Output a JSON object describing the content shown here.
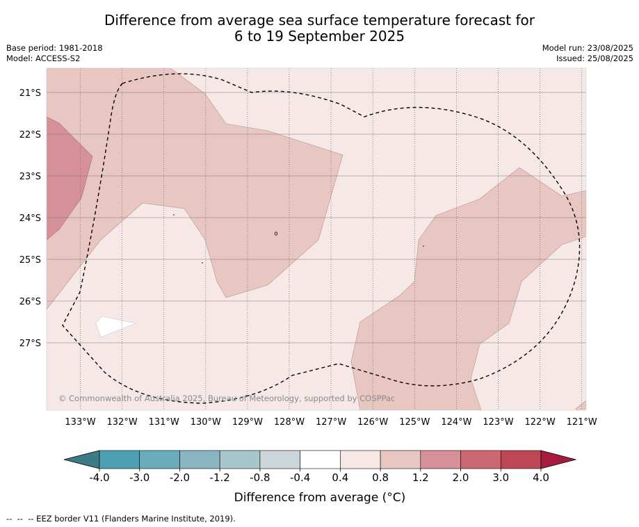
{
  "title": {
    "line1": "Difference from average sea surface temperature forecast for",
    "line2": "6 to 19 September 2025"
  },
  "meta_left": {
    "base_period": "Base period: 1981-2018",
    "model": "Model: ACCESS-S2"
  },
  "meta_right": {
    "model_run": "Model run: 23/08/2025",
    "issued": "Issued: 25/08/2025"
  },
  "map": {
    "lat_labels": [
      "21°S",
      "22°S",
      "23°S",
      "24°S",
      "25°S",
      "26°S",
      "27°S"
    ],
    "lon_labels": [
      "133°W",
      "132°W",
      "131°W",
      "130°W",
      "129°W",
      "128°W",
      "127°W",
      "126°W",
      "125°W",
      "124°W",
      "123°W",
      "122°W",
      "121°W"
    ],
    "watermark": "© Commonwealth of Australia 2025, Bureau of Meteorology, supported by COSPPac",
    "background_category": "0.4 to 0.8",
    "colors": {
      "c_04_08": "#f5e8e7",
      "c_08_12": "#e8c7c2",
      "c_12_20": "#d69098",
      "c_neutral": "#ffffff"
    }
  },
  "colorbar": {
    "label": "Difference from average (°C)",
    "ticks": [
      "-4.0",
      "-3.0",
      "-2.0",
      "-1.2",
      "-0.8",
      "-0.4",
      "0.4",
      "0.8",
      "1.2",
      "2.0",
      "3.0",
      "4.0"
    ],
    "colors": [
      "#3d7c87",
      "#4aa0b2",
      "#6aacba",
      "#8ab6c3",
      "#a8c7cc",
      "#cdd6d9",
      "#ffffff",
      "#f5e8e7",
      "#e8c7c2",
      "#d69098",
      "#cb6872",
      "#be4756",
      "#a71c3c"
    ]
  },
  "footnote": "--  --  -- EEZ border V11 (Flanders Marine Institute, 2019)."
}
